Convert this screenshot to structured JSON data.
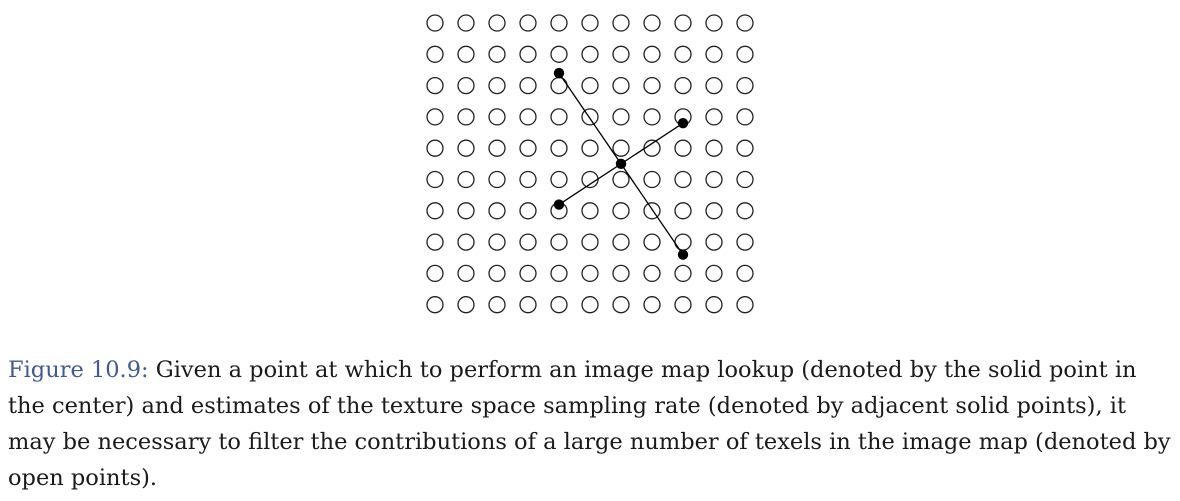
{
  "figure": {
    "grid": {
      "rows": 10,
      "cols": 11
    },
    "center_point": {
      "col": 6,
      "row": 4.5
    },
    "adjacent_points": [
      {
        "col": 4,
        "row": 1.6
      },
      {
        "col": 8,
        "row": 7.4
      },
      {
        "col": 8,
        "row": 3.2
      },
      {
        "col": 4,
        "row": 5.8
      }
    ],
    "colors": {
      "open_point_stroke": "#222222",
      "solid_point_fill": "#000000",
      "line": "#000000"
    }
  },
  "caption": {
    "label": "Figure 10.9:",
    "text": " Given a point at which to perform an image map lookup (denoted by the solid point in the center) and estimates of the texture space sampling rate (denoted by adjacent solid points), it may be necessary to filter the contributions of a large number of texels in the image map (denoted by open points)."
  }
}
